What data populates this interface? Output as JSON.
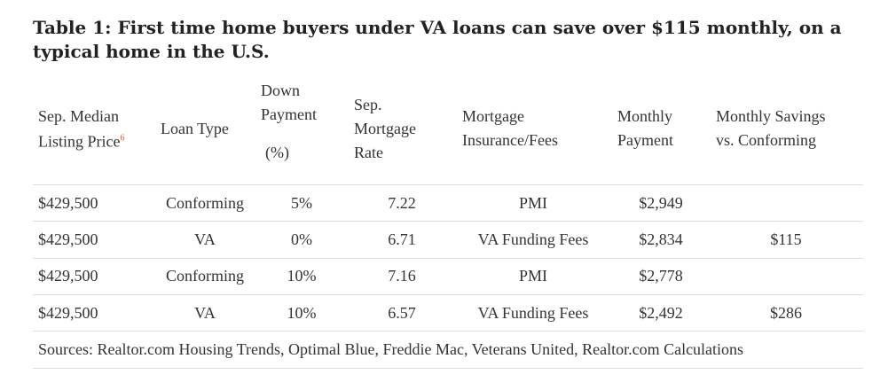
{
  "title": "Table 1: First time home buyers under VA loans can save over $115 monthly, on a typical home in the U.S.",
  "table": {
    "header": [
      {
        "lines": [
          "Sep. Median",
          "Listing Price"
        ],
        "note": "6"
      },
      {
        "lines": [
          "Loan Type"
        ]
      },
      {
        "lines": [
          "Down",
          "Payment",
          "(%)"
        ]
      },
      {
        "lines": [
          "Sep.",
          "Mortgage",
          "Rate"
        ]
      },
      {
        "lines": [
          "Mortgage",
          "Insurance/Fees"
        ]
      },
      {
        "lines": [
          "Monthly",
          "Payment"
        ]
      },
      {
        "lines": [
          "Monthly Savings",
          "vs. Conforming"
        ]
      }
    ],
    "rows": [
      [
        "$429,500",
        "Conforming",
        "5%",
        "7.22",
        "PMI",
        "$2,949",
        ""
      ],
      [
        "$429,500",
        "VA",
        "0%",
        "6.71",
        "VA Funding Fees",
        "$2,834",
        "$115"
      ],
      [
        "$429,500",
        "Conforming",
        "10%",
        "7.16",
        "PMI",
        "$2,778",
        ""
      ],
      [
        "$429,500",
        "VA",
        "10%",
        "6.57",
        "VA Funding Fees",
        "$2,492",
        "$286"
      ]
    ],
    "source": "Sources: Realtor.com Housing Trends, Optimal Blue, Freddie Mac, Veterans United,  Realtor.com Calculations"
  }
}
